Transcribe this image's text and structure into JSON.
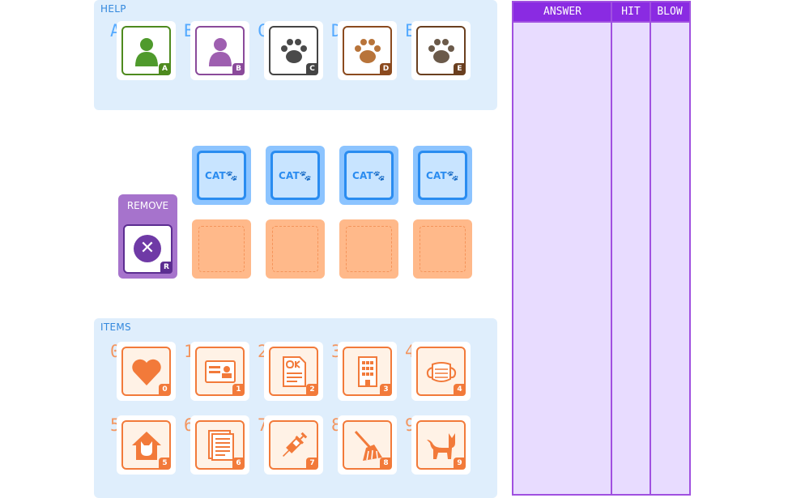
{
  "help": {
    "title": "HELP",
    "items": [
      {
        "label": "A",
        "key": "A",
        "icon": "person-icon",
        "color": "#4e8a1e",
        "fill": "#4f9a2c"
      },
      {
        "label": "B",
        "key": "B",
        "icon": "person-icon",
        "color": "#8a4a9a",
        "fill": "#9e5fb0"
      },
      {
        "label": "C",
        "key": "C",
        "icon": "paw-icon",
        "color": "#444444",
        "fill": "#4a4a4a"
      },
      {
        "label": "D",
        "key": "D",
        "icon": "paw-icon",
        "color": "#8b4a1e",
        "fill": "#b8743a"
      },
      {
        "label": "E",
        "key": "E",
        "icon": "paw-icon",
        "color": "#6a3f1f",
        "fill": "#6b5a4a"
      }
    ]
  },
  "slots": {
    "cats": [
      {
        "text": "CAT🐾"
      },
      {
        "text": "CAT🐾"
      },
      {
        "text": "CAT🐾"
      },
      {
        "text": "CAT🐾"
      }
    ],
    "empty_count": 4
  },
  "remove": {
    "title": "REMOVE",
    "key": "R"
  },
  "items": {
    "title": "ITEMS",
    "list": [
      {
        "label": "0",
        "key": "0",
        "icon": "heart-icon"
      },
      {
        "label": "1",
        "key": "1",
        "icon": "id-card-icon"
      },
      {
        "label": "2",
        "key": "2",
        "icon": "ok-document-icon"
      },
      {
        "label": "3",
        "key": "3",
        "icon": "building-icon"
      },
      {
        "label": "4",
        "key": "4",
        "icon": "mask-icon"
      },
      {
        "label": "5",
        "key": "5",
        "icon": "cat-house-icon"
      },
      {
        "label": "6",
        "key": "6",
        "icon": "document-icon"
      },
      {
        "label": "7",
        "key": "7",
        "icon": "syringe-icon"
      },
      {
        "label": "8",
        "key": "8",
        "icon": "broom-icon"
      },
      {
        "label": "9",
        "key": "9",
        "icon": "cat-icon"
      }
    ]
  },
  "answer_table": {
    "headers": [
      "ANSWER",
      "HIT",
      "BLOW"
    ],
    "rows": []
  },
  "colors": {
    "help_panel": "#dfeefc",
    "item_accent": "#f27a3a",
    "cat_accent": "#2a8cf0",
    "table_header": "#8a2be2",
    "table_body": "#e8dcff"
  }
}
